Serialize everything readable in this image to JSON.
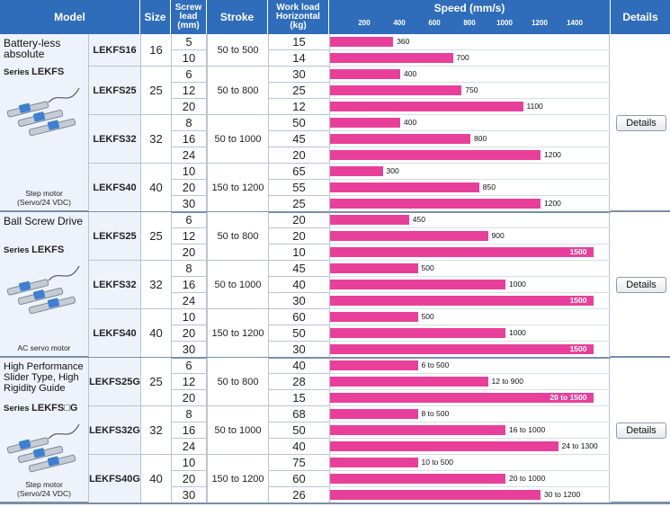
{
  "header": {
    "model": "Model",
    "size": "Size",
    "lead": "Screw lead (mm)",
    "stroke": "Stroke",
    "workload": "Work load Horizontal (kg)",
    "speed": "Speed (mm/s)",
    "details": "Details",
    "ticks": [
      "200",
      "400",
      "600",
      "800",
      "1000",
      "1200",
      "1400"
    ]
  },
  "colors": {
    "header": "#2f6dbb",
    "bar": "#e8409a",
    "model_bg": "#eef3fb"
  },
  "chart_data": {
    "type": "bar",
    "title": "Speed (mm/s)",
    "xlim": [
      0,
      1600
    ],
    "tick_labels": [
      "200",
      "400",
      "600",
      "800",
      "1000",
      "1200",
      "1400"
    ]
  },
  "groups": [
    {
      "title": "Battery-less absolute",
      "series_prefix": "Series ",
      "series_name": "LEKFS",
      "motor": "Step motor (Servo/24 VDC)",
      "details_label": "Details",
      "models": [
        {
          "model": "LEKFS16",
          "size": "16",
          "stroke": "50 to 500",
          "rows": [
            {
              "lead": "5",
              "load": "15",
              "speed": 360,
              "label": "360"
            },
            {
              "lead": "10",
              "load": "14",
              "speed": 700,
              "label": "700"
            }
          ]
        },
        {
          "model": "LEKFS25",
          "size": "25",
          "stroke": "50 to 800",
          "rows": [
            {
              "lead": "6",
              "load": "30",
              "speed": 400,
              "label": "400"
            },
            {
              "lead": "12",
              "load": "25",
              "speed": 750,
              "label": "750"
            },
            {
              "lead": "20",
              "load": "12",
              "speed": 1100,
              "label": "1100"
            }
          ]
        },
        {
          "model": "LEKFS32",
          "size": "32",
          "stroke": "50 to 1000",
          "rows": [
            {
              "lead": "8",
              "load": "50",
              "speed": 400,
              "label": "400"
            },
            {
              "lead": "16",
              "load": "45",
              "speed": 800,
              "label": "800"
            },
            {
              "lead": "24",
              "load": "20",
              "speed": 1200,
              "label": "1200"
            }
          ]
        },
        {
          "model": "LEKFS40",
          "size": "40",
          "stroke": "150 to 1200",
          "rows": [
            {
              "lead": "10",
              "load": "65",
              "speed": 300,
              "label": "300"
            },
            {
              "lead": "20",
              "load": "55",
              "speed": 850,
              "label": "850"
            },
            {
              "lead": "30",
              "load": "25",
              "speed": 1200,
              "label": "1200"
            }
          ]
        }
      ]
    },
    {
      "title": "Ball Screw Drive",
      "series_prefix": "Series ",
      "series_name": "LEKFS",
      "motor": "AC servo motor",
      "details_label": "Details",
      "models": [
        {
          "model": "LEKFS25",
          "size": "25",
          "stroke": "50 to 800",
          "rows": [
            {
              "lead": "6",
              "load": "20",
              "speed": 450,
              "label": "450"
            },
            {
              "lead": "12",
              "load": "20",
              "speed": 900,
              "label": "900"
            },
            {
              "lead": "20",
              "load": "10",
              "speed": 1500,
              "label": "1500",
              "inside": true
            }
          ]
        },
        {
          "model": "LEKFS32",
          "size": "32",
          "stroke": "50 to 1000",
          "rows": [
            {
              "lead": "8",
              "load": "45",
              "speed": 500,
              "label": "500"
            },
            {
              "lead": "16",
              "load": "40",
              "speed": 1000,
              "label": "1000"
            },
            {
              "lead": "24",
              "load": "30",
              "speed": 1500,
              "label": "1500",
              "inside": true
            }
          ]
        },
        {
          "model": "LEKFS40",
          "size": "40",
          "stroke": "150 to 1200",
          "rows": [
            {
              "lead": "10",
              "load": "60",
              "speed": 500,
              "label": "500"
            },
            {
              "lead": "20",
              "load": "50",
              "speed": 1000,
              "label": "1000"
            },
            {
              "lead": "30",
              "load": "30",
              "speed": 1500,
              "label": "1500",
              "inside": true
            }
          ]
        }
      ]
    },
    {
      "title": "High Performance Slider Type, High Rigidity Guide",
      "series_prefix": "Series ",
      "series_name": "LEKFS□G",
      "motor": "Step motor (Servo/24 VDC)",
      "details_label": "Details",
      "models": [
        {
          "model": "LEKFS25G",
          "size": "25",
          "stroke": "50 to 800",
          "rows": [
            {
              "lead": "6",
              "load": "40",
              "speed": 500,
              "label": "6 to 500"
            },
            {
              "lead": "12",
              "load": "28",
              "speed": 900,
              "label": "12 to 900"
            },
            {
              "lead": "20",
              "load": "15",
              "speed": 1500,
              "label": "20 to 1500",
              "inside": true
            }
          ]
        },
        {
          "model": "LEKFS32G",
          "size": "32",
          "stroke": "50 to 1000",
          "rows": [
            {
              "lead": "8",
              "load": "68",
              "speed": 500,
              "label": "8 to 500"
            },
            {
              "lead": "16",
              "load": "50",
              "speed": 1000,
              "label": "16 to 1000"
            },
            {
              "lead": "24",
              "load": "40",
              "speed": 1300,
              "label": "24 to 1300"
            }
          ]
        },
        {
          "model": "LEKFS40G",
          "size": "40",
          "stroke": "150 to 1200",
          "rows": [
            {
              "lead": "10",
              "load": "75",
              "speed": 500,
              "label": "10 to 500"
            },
            {
              "lead": "20",
              "load": "60",
              "speed": 1000,
              "label": "20 to 1000"
            },
            {
              "lead": "30",
              "load": "26",
              "speed": 1200,
              "label": "30 to 1200"
            }
          ]
        }
      ]
    }
  ]
}
